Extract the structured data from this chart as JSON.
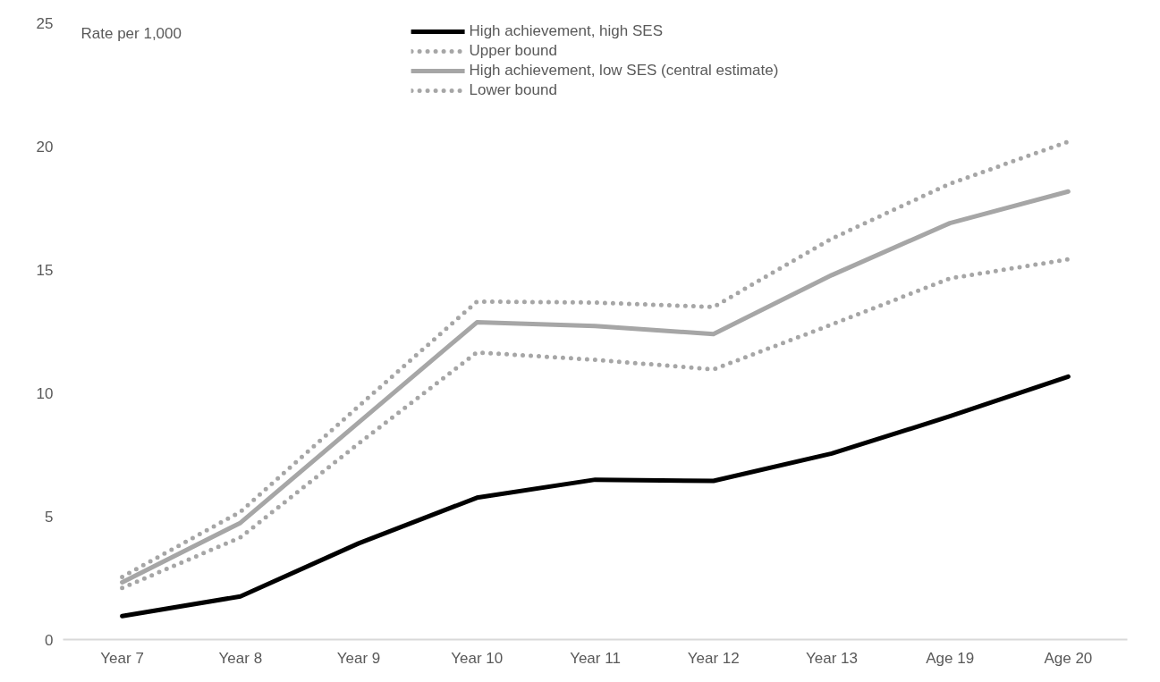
{
  "chart_data": {
    "type": "line",
    "ylabel": "Rate per 1,000",
    "categories": [
      "Year 7",
      "Year 8",
      "Year 9",
      "Year 10",
      "Year 11",
      "Year 12",
      "Year 13",
      "Age 19",
      "Age 20"
    ],
    "series": [
      {
        "name": "High achievement, high SES",
        "color": "#000000",
        "line_style": "solid",
        "values": [
          0.95,
          1.75,
          3.9,
          5.75,
          6.48,
          6.43,
          7.54,
          9.05,
          10.66
        ]
      },
      {
        "name": "Upper bound",
        "color": "#a6a6a6",
        "line_style": "dotted",
        "values": [
          2.54,
          5.18,
          9.46,
          13.7,
          13.66,
          13.48,
          16.25,
          18.48,
          20.18
        ]
      },
      {
        "name": "High achievement, low SES (central estimate)",
        "color": "#a6a6a6",
        "line_style": "solid",
        "values": [
          2.32,
          4.73,
          8.8,
          12.86,
          12.71,
          12.38,
          14.77,
          16.88,
          18.16
        ]
      },
      {
        "name": "Lower bound",
        "color": "#a6a6a6",
        "line_style": "dotted",
        "values": [
          2.09,
          4.14,
          7.95,
          11.64,
          11.34,
          10.95,
          12.77,
          14.64,
          15.41
        ]
      }
    ],
    "ylim": [
      0,
      25
    ],
    "yticks": [
      0,
      5,
      10,
      15,
      20,
      25
    ],
    "grid": false,
    "legend": "top",
    "marker": "none"
  }
}
